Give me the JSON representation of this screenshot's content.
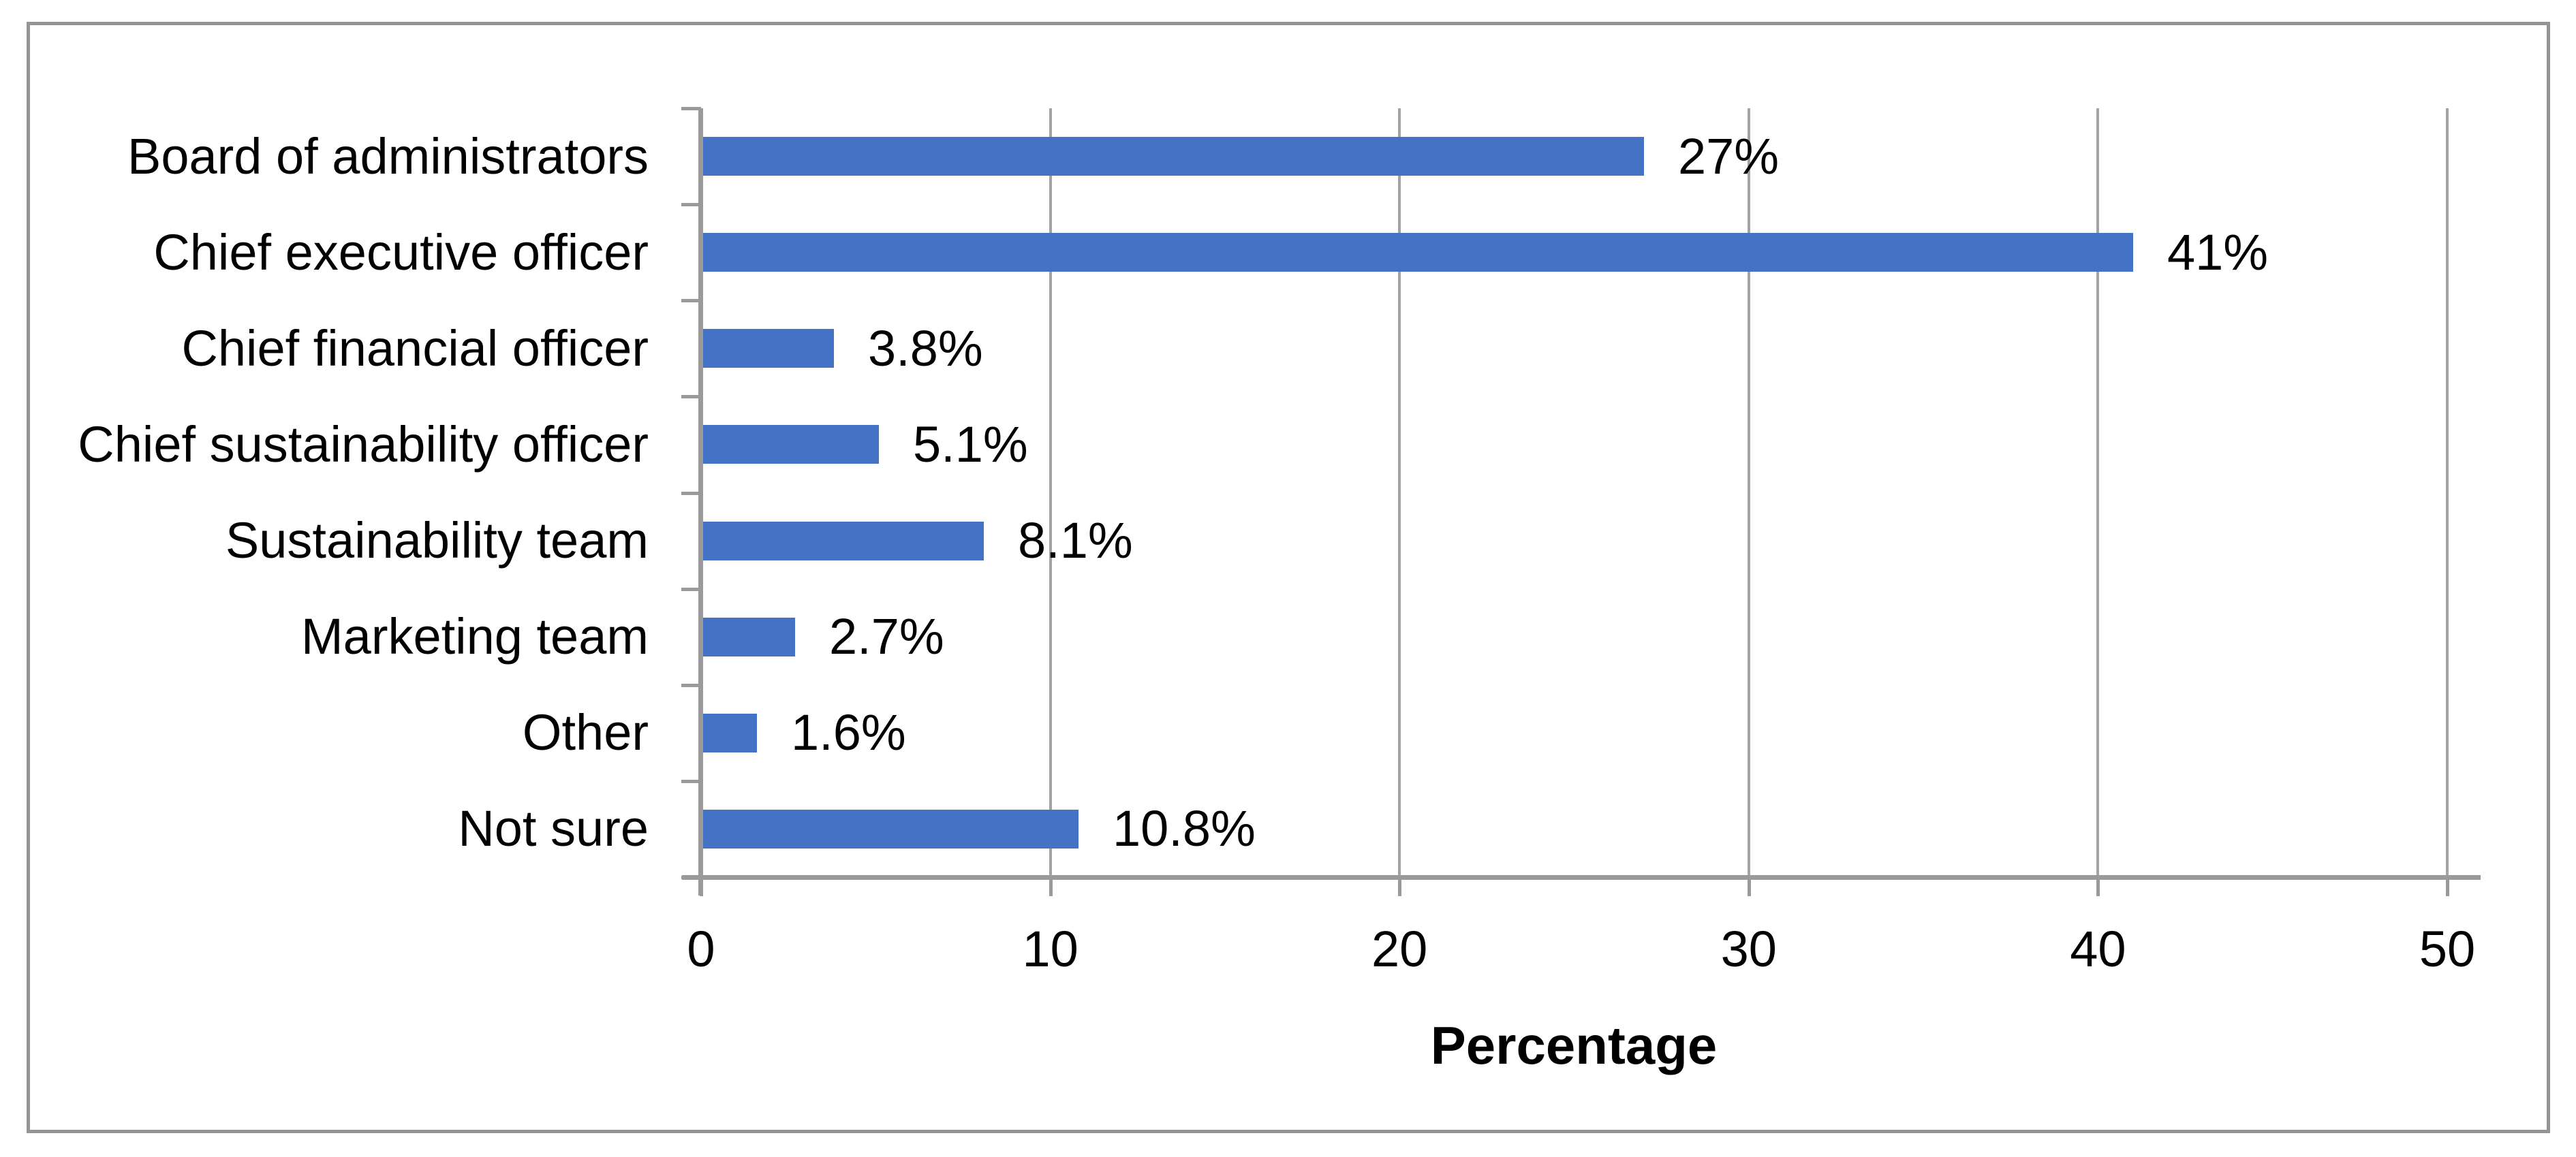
{
  "chart_data": {
    "type": "bar",
    "orientation": "horizontal",
    "title": "",
    "categories": [
      "Board of administrators",
      "Chief executive officer",
      "Chief financial officer",
      "Chief sustainability officer",
      "Sustainability team",
      "Marketing team",
      "Other",
      "Not sure"
    ],
    "values": [
      27,
      41,
      3.8,
      5.1,
      8.1,
      2.7,
      1.6,
      10.8
    ],
    "value_labels": [
      "27%",
      "41%",
      "3.8%",
      "5.1%",
      "8.1%",
      "2.7%",
      "1.6%",
      "10.8%"
    ],
    "xlabel": "Percentage",
    "ylabel": "",
    "xlim": [
      0,
      50
    ],
    "x_ticks": [
      0,
      10,
      20,
      30,
      40,
      50
    ],
    "x_tick_labels": [
      "0",
      "10",
      "20",
      "30",
      "40",
      "50"
    ],
    "grid": "vertical gridlines at x ticks",
    "legend": "none",
    "bar_color": "#4472C4",
    "axis_color": "#9A9A9A",
    "gridline_color": "#A3A3A3",
    "frame_border_color": "#949494",
    "text_color": "#000000"
  }
}
